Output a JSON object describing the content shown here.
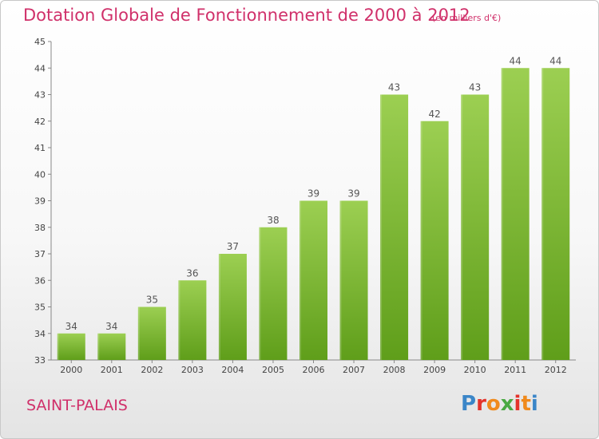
{
  "header": {
    "title": "Dotation Globale de Fonctionnement de 2000 à 2012",
    "unit_note": "(en milliers d'€)"
  },
  "footer": {
    "city": "SAINT-PALAIS",
    "logo_text": "Proxiti"
  },
  "colors": {
    "bar_light": "#9ccf52",
    "bar_dark": "#5f9e1a",
    "title": "#d0306a",
    "logo": [
      "#3b86c8",
      "#e4332b",
      "#f08a1c",
      "#49a942",
      "#e4332b",
      "#f08a1c",
      "#3b86c8"
    ]
  },
  "chart_data": {
    "type": "bar",
    "title": "Dotation Globale de Fonctionnement de 2000 à 2012",
    "subtitle": "(en milliers d'€)",
    "categories": [
      "2000",
      "2001",
      "2002",
      "2003",
      "2004",
      "2005",
      "2006",
      "2007",
      "2008",
      "2009",
      "2010",
      "2011",
      "2012"
    ],
    "values": [
      34,
      34,
      35,
      36,
      37,
      38,
      39,
      39,
      43,
      42,
      43,
      44,
      44
    ],
    "xlabel": "",
    "ylabel": "",
    "ylim": [
      33,
      45
    ],
    "yticks": [
      33,
      34,
      35,
      36,
      37,
      38,
      39,
      40,
      41,
      42,
      43,
      44,
      45
    ],
    "grid": false,
    "data_labels": true,
    "legend": "none"
  }
}
